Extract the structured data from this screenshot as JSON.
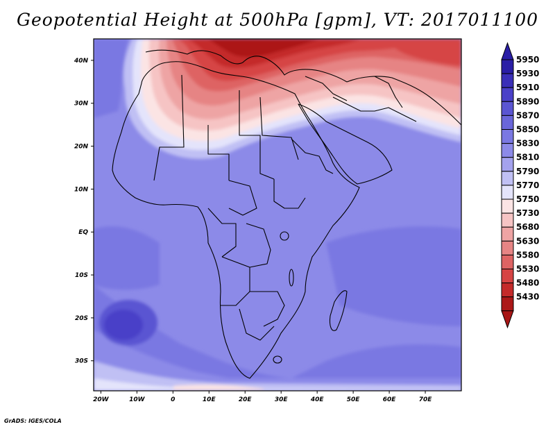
{
  "title": "Geopotential Height at 500hPa [gpm], VT: 2017011100",
  "credit": "GrADS: IGES/COLA",
  "map": {
    "lon_range": [
      -22,
      80
    ],
    "lat_range": [
      -37,
      45
    ],
    "lon_ticks": [
      {
        "lon": -20,
        "label": "20W"
      },
      {
        "lon": -10,
        "label": "10W"
      },
      {
        "lon": 0,
        "label": "0"
      },
      {
        "lon": 10,
        "label": "10E"
      },
      {
        "lon": 20,
        "label": "20E"
      },
      {
        "lon": 30,
        "label": "30E"
      },
      {
        "lon": 40,
        "label": "40E"
      },
      {
        "lon": 50,
        "label": "50E"
      },
      {
        "lon": 60,
        "label": "60E"
      },
      {
        "lon": 70,
        "label": "70E"
      }
    ],
    "lat_ticks": [
      {
        "lat": 40,
        "label": "40N"
      },
      {
        "lat": 30,
        "label": "30N"
      },
      {
        "lat": 20,
        "label": "20N"
      },
      {
        "lat": 10,
        "label": "10N"
      },
      {
        "lat": 0,
        "label": "EQ"
      },
      {
        "lat": -10,
        "label": "10S"
      },
      {
        "lat": -20,
        "label": "20S"
      },
      {
        "lat": -30,
        "label": "30S"
      }
    ]
  },
  "colorbar": {
    "levels": [
      "5950",
      "5930",
      "5910",
      "5890",
      "5870",
      "5850",
      "5830",
      "5810",
      "5790",
      "5770",
      "5750",
      "5730",
      "5680",
      "5630",
      "5580",
      "5530",
      "5480",
      "5430"
    ],
    "colors": [
      "#2a1ea6",
      "#3a2fb8",
      "#4a40c8",
      "#5a55d2",
      "#6a66da",
      "#7a78e2",
      "#8c8ae8",
      "#a4a2ee",
      "#c0c0f4",
      "#e4e4fb",
      "#fbe4e4",
      "#f6c4c4",
      "#eea4a4",
      "#e68484",
      "#de6464",
      "#d64444",
      "#c42a2a",
      "#ac1818"
    ],
    "top_color": "#2a1ea6",
    "bottom_color": "#a81616"
  }
}
